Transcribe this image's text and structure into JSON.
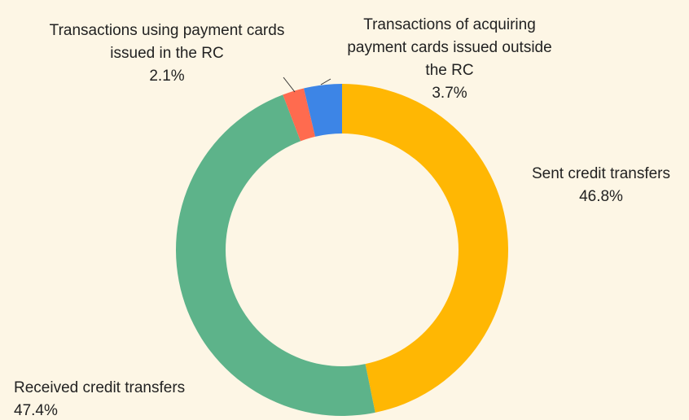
{
  "chart_data": {
    "type": "donut",
    "categories": [
      "Sent credit transfers",
      "Received credit transfers",
      "Transactions using payment cards issued in the RC",
      "Transactions of acquiring payment cards issued outside the RC"
    ],
    "values": [
      46.8,
      47.4,
      2.1,
      3.7
    ],
    "value_labels": [
      "46.8%",
      "47.4%",
      "2.1%",
      "3.7%"
    ],
    "colors": [
      "#FFB703",
      "#5DB38A",
      "#FF6B4F",
      "#3D85E6"
    ]
  }
}
